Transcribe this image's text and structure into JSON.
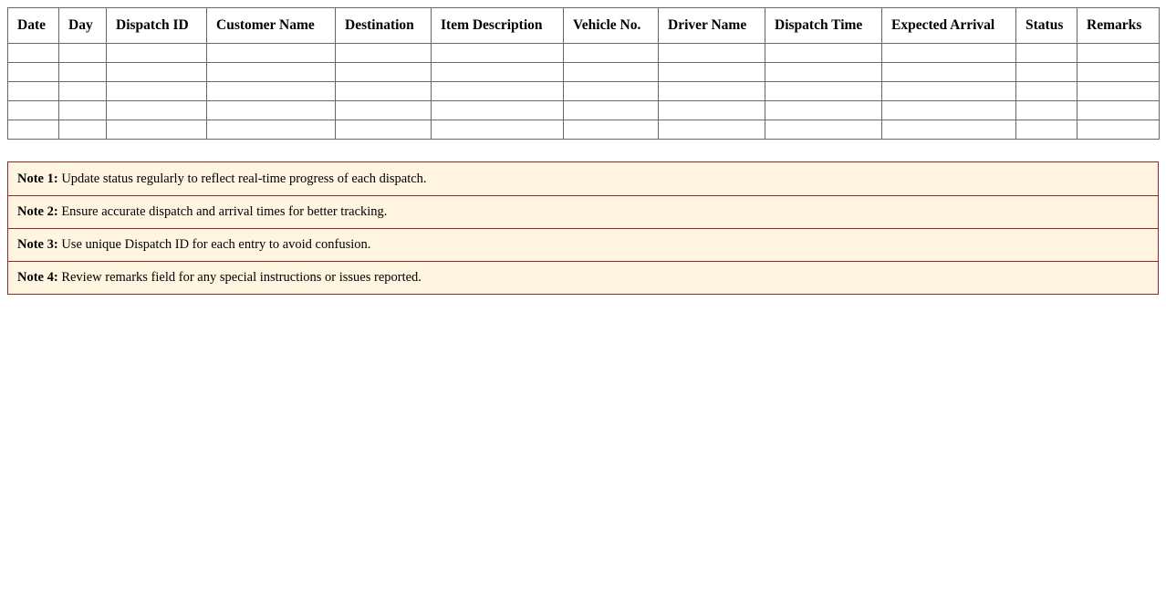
{
  "table": {
    "headers": [
      "Date",
      "Day",
      "Dispatch ID",
      "Customer Name",
      "Destination",
      "Item Description",
      "Vehicle No.",
      "Driver Name",
      "Dispatch Time",
      "Expected Arrival",
      "Status",
      "Remarks"
    ],
    "empty_rows": 5
  },
  "notes": [
    {
      "label": "Note 1:",
      "text": " Update status regularly to reflect real-time progress of each dispatch."
    },
    {
      "label": "Note 2:",
      "text": " Ensure accurate dispatch and arrival times for better tracking."
    },
    {
      "label": "Note 3:",
      "text": " Use unique Dispatch ID for each entry to avoid confusion."
    },
    {
      "label": "Note 4:",
      "text": " Review remarks field for any special instructions or issues reported."
    }
  ],
  "colors": {
    "note_border": "#8b2a2a",
    "note_background": "#fff5e0",
    "table_border": "#666666"
  }
}
